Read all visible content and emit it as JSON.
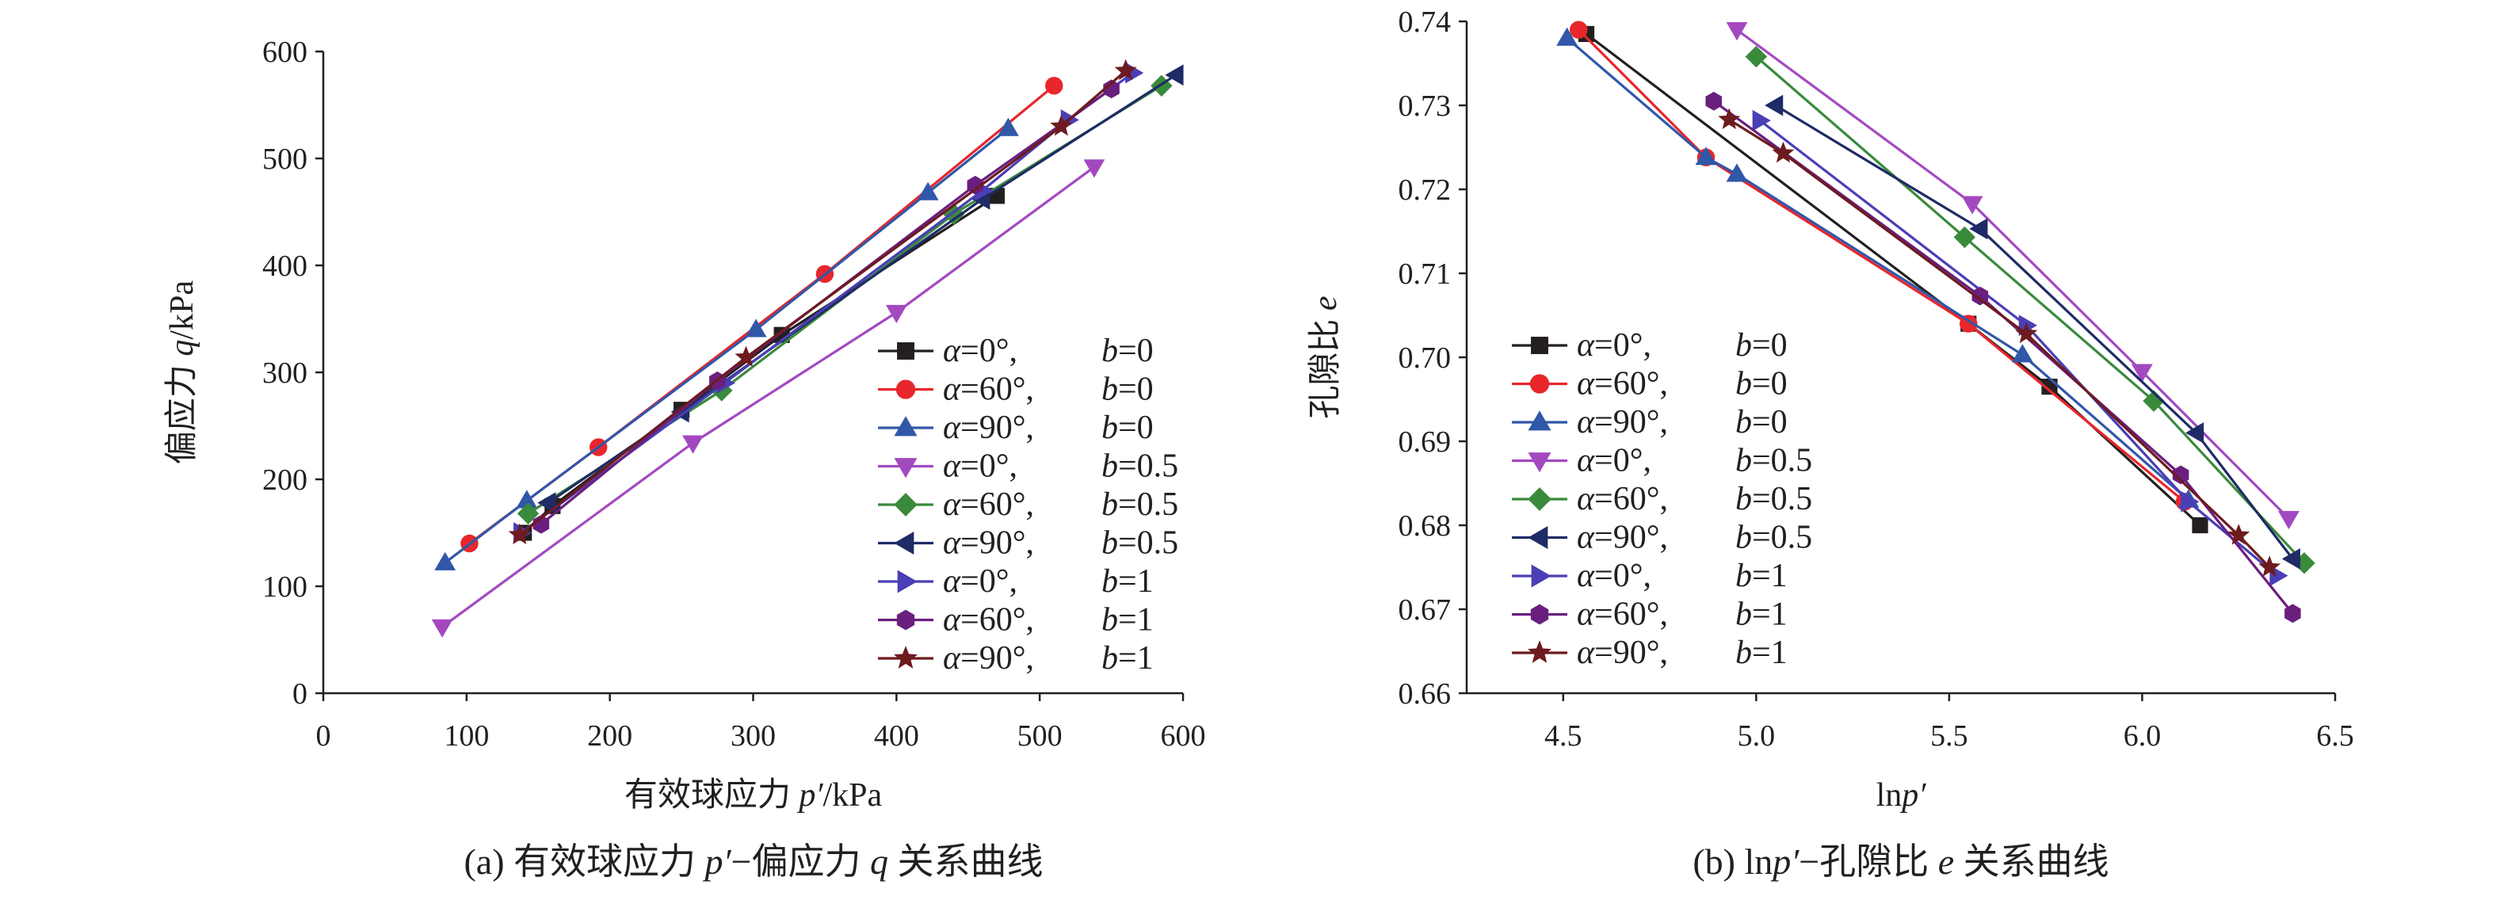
{
  "chart_data": [
    {
      "type": "line",
      "panel": "a",
      "caption_parts": [
        "(a) 有效球应力 ",
        "p′",
        "−偏应力 ",
        "q",
        " 关系曲线"
      ],
      "xlabel_parts": [
        "有效球应力 ",
        "p′",
        "/kPa"
      ],
      "ylabel_parts": [
        "偏应力 ",
        "q",
        "/kPa"
      ],
      "xlim": [
        0,
        600
      ],
      "ylim": [
        0,
        600
      ],
      "xticks": [
        0,
        100,
        200,
        300,
        400,
        500,
        600
      ],
      "yticks": [
        0,
        100,
        200,
        300,
        400,
        500,
        600
      ],
      "xtick_labels": [
        "0",
        "100",
        "200",
        "300",
        "400",
        "500",
        "600"
      ],
      "ytick_labels": [
        "0",
        "100",
        "200",
        "300",
        "400",
        "500",
        "600"
      ],
      "grid": false,
      "legend_position": "bottom-right",
      "series": [
        {
          "name": "α=0°, b=0",
          "alpha": "0°",
          "b": "0",
          "color": "#231f20",
          "marker": "square",
          "x": [
            140,
            160,
            250,
            320,
            470
          ],
          "y": [
            150,
            175,
            265,
            335,
            465
          ]
        },
        {
          "name": "α=60°, b=0",
          "alpha": "60°",
          "b": "0",
          "color": "#e8262b",
          "marker": "circle",
          "x": [
            102,
            192,
            350,
            510
          ],
          "y": [
            140,
            230,
            392,
            568
          ]
        },
        {
          "name": "α=90°, b=0",
          "alpha": "90°",
          "b": "0",
          "color": "#3157a8",
          "marker": "triangle-up",
          "x": [
            85,
            142,
            302,
            422,
            478
          ],
          "y": [
            122,
            180,
            340,
            468,
            528
          ]
        },
        {
          "name": "α=0°, b=0.5",
          "alpha": "0°",
          "b": "0.5",
          "color": "#a349c0",
          "marker": "triangle-down",
          "x": [
            83,
            258,
            400,
            538
          ],
          "y": [
            62,
            234,
            356,
            492
          ]
        },
        {
          "name": "α=60°, b=0.5",
          "alpha": "60°",
          "b": "0.5",
          "color": "#3a8a3c",
          "marker": "diamond",
          "x": [
            143,
            278,
            440,
            585
          ],
          "y": [
            168,
            283,
            448,
            568
          ]
        },
        {
          "name": "α=90°, b=0.5",
          "alpha": "90°",
          "b": "0.5",
          "color": "#1f2b66",
          "marker": "triangle-left",
          "x": [
            157,
            250,
            460,
            595
          ],
          "y": [
            178,
            263,
            462,
            578
          ]
        },
        {
          "name": "α=0°, b=1",
          "alpha": "0°",
          "b": "1",
          "color": "#4a3fb5",
          "marker": "triangle-right",
          "x": [
            138,
            280,
            460,
            520,
            565
          ],
          "y": [
            150,
            290,
            470,
            536,
            580
          ]
        },
        {
          "name": "α=60°, b=1",
          "alpha": "60°",
          "b": "1",
          "color": "#6a1f7e",
          "marker": "hexagon",
          "x": [
            152,
            275,
            455,
            550
          ],
          "y": [
            158,
            292,
            475,
            565
          ]
        },
        {
          "name": "α=90°, b=1",
          "alpha": "90°",
          "b": "1",
          "color": "#6d1b1e",
          "marker": "star",
          "x": [
            137,
            295,
            515,
            560
          ],
          "y": [
            148,
            314,
            530,
            582
          ]
        }
      ]
    },
    {
      "type": "line",
      "panel": "b",
      "caption_parts": [
        "(b) ln",
        "p′",
        "−孔隙比 ",
        "e",
        " 关系曲线"
      ],
      "xlabel_parts": [
        "ln",
        "p′",
        ""
      ],
      "ylabel_parts": [
        "孔隙比 ",
        "e",
        ""
      ],
      "xlim": [
        4.25,
        6.5
      ],
      "ylim": [
        0.66,
        0.74
      ],
      "xticks": [
        4.5,
        5.0,
        5.5,
        6.0,
        6.5
      ],
      "yticks": [
        0.66,
        0.67,
        0.68,
        0.69,
        0.7,
        0.71,
        0.72,
        0.73,
        0.74
      ],
      "xtick_labels": [
        "4.5",
        "5.0",
        "5.5",
        "6.0",
        "6.5"
      ],
      "ytick_labels": [
        "0.66",
        "0.67",
        "0.68",
        "0.69",
        "0.70",
        "0.71",
        "0.72",
        "0.73",
        "0.74"
      ],
      "grid": false,
      "legend_position": "bottom-left",
      "series": [
        {
          "name": "α=0°, b=0",
          "alpha": "0°",
          "b": "0",
          "color": "#231f20",
          "marker": "square",
          "x": [
            4.56,
            5.55,
            5.76,
            6.15
          ],
          "y": [
            0.7385,
            0.704,
            0.6965,
            0.68
          ]
        },
        {
          "name": "α=60°, b=0",
          "alpha": "60°",
          "b": "0",
          "color": "#e8262b",
          "marker": "circle",
          "x": [
            4.54,
            4.87,
            5.55,
            6.11
          ],
          "y": [
            0.739,
            0.7238,
            0.704,
            0.6828
          ]
        },
        {
          "name": "α=90°, b=0",
          "alpha": "90°",
          "b": "0",
          "color": "#3157a8",
          "marker": "triangle-up",
          "x": [
            4.51,
            4.87,
            4.95,
            5.69,
            6.12
          ],
          "y": [
            0.738,
            0.7238,
            0.7218,
            0.7003,
            0.683
          ]
        },
        {
          "name": "α=0°, b=0.5",
          "alpha": "0°",
          "b": "0.5",
          "color": "#a349c0",
          "marker": "triangle-down",
          "x": [
            4.95,
            5.56,
            6.0,
            6.38
          ],
          "y": [
            0.739,
            0.7183,
            0.6983,
            0.6808
          ]
        },
        {
          "name": "α=60°, b=0.5",
          "alpha": "60°",
          "b": "0.5",
          "color": "#3a8a3c",
          "marker": "diamond",
          "x": [
            5.0,
            5.54,
            6.03,
            6.42
          ],
          "y": [
            0.7358,
            0.7143,
            0.6948,
            0.6755
          ]
        },
        {
          "name": "α=90°, b=0.5",
          "alpha": "90°",
          "b": "0.5",
          "color": "#1f2b66",
          "marker": "triangle-left",
          "x": [
            5.05,
            5.58,
            6.14,
            6.39
          ],
          "y": [
            0.73,
            0.7153,
            0.691,
            0.676
          ]
        },
        {
          "name": "α=0°, b=1",
          "alpha": "0°",
          "b": "1",
          "color": "#4a3fb5",
          "marker": "triangle-right",
          "x": [
            5.01,
            5.7,
            6.12,
            6.35
          ],
          "y": [
            0.7282,
            0.7038,
            0.6828,
            0.674
          ]
        },
        {
          "name": "α=60°, b=1",
          "alpha": "60°",
          "b": "1",
          "color": "#6a1f7e",
          "marker": "hexagon",
          "x": [
            4.89,
            5.58,
            6.1,
            6.39
          ],
          "y": [
            0.7305,
            0.7073,
            0.686,
            0.6695
          ]
        },
        {
          "name": "α=90°, b=1",
          "alpha": "90°",
          "b": "1",
          "color": "#6d1b1e",
          "marker": "star",
          "x": [
            4.93,
            5.07,
            5.7,
            6.25,
            6.33
          ],
          "y": [
            0.7283,
            0.7243,
            0.7028,
            0.6788,
            0.675
          ]
        }
      ]
    }
  ]
}
